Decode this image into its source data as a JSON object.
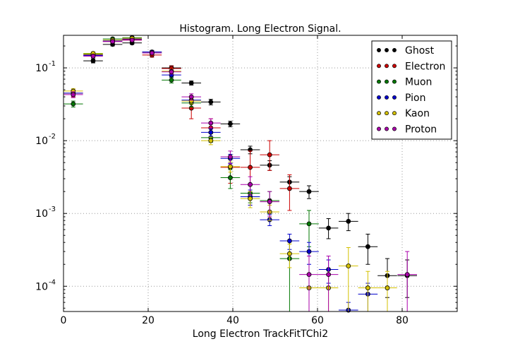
{
  "chart_data": {
    "type": "scatter",
    "title": "Histogram. Long Electron Signal.",
    "xlabel": "Long Electron TrackFitTChi2",
    "ylabel": "",
    "xlim": [
      0,
      93
    ],
    "ylim": [
      4.5e-05,
      0.28
    ],
    "yscale": "log",
    "grid": true,
    "legend_position": "top-right",
    "x_ticks": [
      0,
      20,
      40,
      60,
      80
    ],
    "x_tick_labels": [
      "0",
      "20",
      "40",
      "60",
      "80"
    ],
    "y_ticks": [
      0.0001,
      0.001,
      0.01,
      0.1
    ],
    "y_tick_labels": [
      "10",
      "10",
      "10",
      "10"
    ],
    "y_tick_exponents": [
      "-4",
      "-3",
      "-2",
      "-1"
    ],
    "x_bin_halfwidth": 2.3,
    "series": [
      {
        "name": "Ghost",
        "color": "#000000",
        "points": [
          {
            "x": 7.0,
            "y": 0.125,
            "lo": 0.117,
            "hi": 0.133
          },
          {
            "x": 11.6,
            "y": 0.21,
            "lo": 0.2,
            "hi": 0.22
          },
          {
            "x": 16.2,
            "y": 0.22,
            "lo": 0.21,
            "hi": 0.23
          },
          {
            "x": 20.9,
            "y": 0.165,
            "lo": 0.156,
            "hi": 0.174
          },
          {
            "x": 25.5,
            "y": 0.1,
            "lo": 0.093,
            "hi": 0.107
          },
          {
            "x": 30.2,
            "y": 0.062,
            "lo": 0.058,
            "hi": 0.066
          },
          {
            "x": 34.8,
            "y": 0.034,
            "lo": 0.031,
            "hi": 0.037
          },
          {
            "x": 39.4,
            "y": 0.017,
            "lo": 0.0155,
            "hi": 0.0185
          },
          {
            "x": 44.1,
            "y": 0.0075,
            "lo": 0.0066,
            "hi": 0.0084
          },
          {
            "x": 48.7,
            "y": 0.0046,
            "lo": 0.0039,
            "hi": 0.0053
          },
          {
            "x": 53.4,
            "y": 0.0027,
            "lo": 0.0022,
            "hi": 0.0032
          },
          {
            "x": 58.0,
            "y": 0.002,
            "lo": 0.0016,
            "hi": 0.0024
          },
          {
            "x": 62.6,
            "y": 0.00063,
            "lo": 0.00045,
            "hi": 0.00085
          },
          {
            "x": 67.3,
            "y": 0.00078,
            "lo": 0.00058,
            "hi": 0.001
          },
          {
            "x": 71.9,
            "y": 0.00035,
            "lo": 0.0002,
            "hi": 0.00052
          },
          {
            "x": 76.5,
            "y": 0.00014,
            "lo": 7e-05,
            "hi": 0.00024
          },
          {
            "x": 81.2,
            "y": 0.00014,
            "lo": 7e-05,
            "hi": 0.00023
          }
        ]
      },
      {
        "name": "Electron",
        "color": "#cc0000",
        "points": [
          {
            "x": 2.3,
            "y": 0.045,
            "lo": 0.04,
            "hi": 0.05
          },
          {
            "x": 7.0,
            "y": 0.15,
            "lo": 0.14,
            "hi": 0.16
          },
          {
            "x": 11.6,
            "y": 0.23,
            "lo": 0.22,
            "hi": 0.24
          },
          {
            "x": 16.2,
            "y": 0.245,
            "lo": 0.235,
            "hi": 0.255
          },
          {
            "x": 20.9,
            "y": 0.15,
            "lo": 0.14,
            "hi": 0.16
          },
          {
            "x": 25.5,
            "y": 0.098,
            "lo": 0.09,
            "hi": 0.106
          },
          {
            "x": 30.2,
            "y": 0.028,
            "lo": 0.02,
            "hi": 0.036
          },
          {
            "x": 34.8,
            "y": 0.015,
            "lo": 0.01,
            "hi": 0.02
          },
          {
            "x": 39.4,
            "y": 0.0043,
            "lo": 0.0026,
            "hi": 0.006
          },
          {
            "x": 44.1,
            "y": 0.0043,
            "lo": 0.0013,
            "hi": 0.0072
          },
          {
            "x": 48.7,
            "y": 0.0064,
            "lo": 0.0039,
            "hi": 0.01
          },
          {
            "x": 53.4,
            "y": 0.0022,
            "lo": 0.0011,
            "hi": 0.0034
          }
        ]
      },
      {
        "name": "Muon",
        "color": "#007700",
        "points": [
          {
            "x": 2.3,
            "y": 0.032,
            "lo": 0.029,
            "hi": 0.035
          },
          {
            "x": 7.0,
            "y": 0.155,
            "lo": 0.145,
            "hi": 0.165
          },
          {
            "x": 11.6,
            "y": 0.25,
            "lo": 0.24,
            "hi": 0.26
          },
          {
            "x": 16.2,
            "y": 0.26,
            "lo": 0.25,
            "hi": 0.27
          },
          {
            "x": 20.9,
            "y": 0.16,
            "lo": 0.152,
            "hi": 0.168
          },
          {
            "x": 25.5,
            "y": 0.068,
            "lo": 0.062,
            "hi": 0.074
          },
          {
            "x": 30.2,
            "y": 0.033,
            "lo": 0.029,
            "hi": 0.037
          },
          {
            "x": 34.8,
            "y": 0.011,
            "lo": 0.0095,
            "hi": 0.0125
          },
          {
            "x": 39.4,
            "y": 0.0031,
            "lo": 0.0022,
            "hi": 0.004
          },
          {
            "x": 44.1,
            "y": 0.0019,
            "lo": 0.0014,
            "hi": 0.0024
          },
          {
            "x": 48.7,
            "y": 0.0015,
            "lo": 0.001,
            "hi": 0.002
          },
          {
            "x": 53.4,
            "y": 0.00024,
            "lo": 4.5e-05,
            "hi": 0.00042
          },
          {
            "x": 58.0,
            "y": 0.00072,
            "lo": 0.00035,
            "hi": 0.0011
          }
        ]
      },
      {
        "name": "Pion",
        "color": "#0000cc",
        "points": [
          {
            "x": 2.3,
            "y": 0.045,
            "lo": 0.041,
            "hi": 0.049
          },
          {
            "x": 7.0,
            "y": 0.148,
            "lo": 0.14,
            "hi": 0.156
          },
          {
            "x": 11.6,
            "y": 0.235,
            "lo": 0.225,
            "hi": 0.245
          },
          {
            "x": 16.2,
            "y": 0.25,
            "lo": 0.24,
            "hi": 0.26
          },
          {
            "x": 20.9,
            "y": 0.165,
            "lo": 0.157,
            "hi": 0.173
          },
          {
            "x": 25.5,
            "y": 0.08,
            "lo": 0.075,
            "hi": 0.085
          },
          {
            "x": 30.2,
            "y": 0.036,
            "lo": 0.033,
            "hi": 0.039
          },
          {
            "x": 34.8,
            "y": 0.013,
            "lo": 0.0115,
            "hi": 0.0145
          },
          {
            "x": 39.4,
            "y": 0.0057,
            "lo": 0.0049,
            "hi": 0.0065
          },
          {
            "x": 44.1,
            "y": 0.0017,
            "lo": 0.0013,
            "hi": 0.0021
          },
          {
            "x": 48.7,
            "y": 0.00082,
            "lo": 0.00068,
            "hi": 0.00096
          },
          {
            "x": 53.4,
            "y": 0.00042,
            "lo": 0.00032,
            "hi": 0.00052
          },
          {
            "x": 58.0,
            "y": 0.0003,
            "lo": 0.0002,
            "hi": 0.0004
          },
          {
            "x": 62.6,
            "y": 0.00017,
            "lo": 0.00011,
            "hi": 0.00023
          },
          {
            "x": 67.3,
            "y": 4.7e-05,
            "lo": 4.5e-05,
            "hi": 6e-05
          },
          {
            "x": 71.9,
            "y": 7.8e-05,
            "lo": 4.5e-05,
            "hi": 0.00011
          }
        ]
      },
      {
        "name": "Kaon",
        "color": "#d4c000",
        "points": [
          {
            "x": 2.3,
            "y": 0.048,
            "lo": 0.044,
            "hi": 0.052
          },
          {
            "x": 7.0,
            "y": 0.158,
            "lo": 0.15,
            "hi": 0.166
          },
          {
            "x": 11.6,
            "y": 0.24,
            "lo": 0.23,
            "hi": 0.25
          },
          {
            "x": 16.2,
            "y": 0.255,
            "lo": 0.245,
            "hi": 0.265
          },
          {
            "x": 20.9,
            "y": 0.16,
            "lo": 0.152,
            "hi": 0.168
          },
          {
            "x": 25.5,
            "y": 0.09,
            "lo": 0.084,
            "hi": 0.096
          },
          {
            "x": 30.2,
            "y": 0.035,
            "lo": 0.032,
            "hi": 0.038
          },
          {
            "x": 34.8,
            "y": 0.01,
            "lo": 0.0088,
            "hi": 0.0112
          },
          {
            "x": 39.4,
            "y": 0.0044,
            "lo": 0.0037,
            "hi": 0.0051
          },
          {
            "x": 44.1,
            "y": 0.0016,
            "lo": 0.0012,
            "hi": 0.002
          },
          {
            "x": 48.7,
            "y": 0.00105,
            "lo": 0.0008,
            "hi": 0.0013
          },
          {
            "x": 53.4,
            "y": 0.00028,
            "lo": 0.00018,
            "hi": 0.00038
          },
          {
            "x": 58.0,
            "y": 9.5e-05,
            "lo": 4.5e-05,
            "hi": 0.00015
          },
          {
            "x": 62.6,
            "y": 9.5e-05,
            "lo": 4.5e-05,
            "hi": 0.00015
          },
          {
            "x": 67.3,
            "y": 0.00019,
            "lo": 4.5e-05,
            "hi": 0.00034
          },
          {
            "x": 71.9,
            "y": 9.5e-05,
            "lo": 4.5e-05,
            "hi": 0.00016
          },
          {
            "x": 76.5,
            "y": 9.5e-05,
            "lo": 4.5e-05,
            "hi": 0.00016
          }
        ]
      },
      {
        "name": "Proton",
        "color": "#aa00aa",
        "points": [
          {
            "x": 2.3,
            "y": 0.043,
            "lo": 0.039,
            "hi": 0.047
          },
          {
            "x": 7.0,
            "y": 0.145,
            "lo": 0.137,
            "hi": 0.153
          },
          {
            "x": 11.6,
            "y": 0.23,
            "lo": 0.22,
            "hi": 0.24
          },
          {
            "x": 16.2,
            "y": 0.24,
            "lo": 0.23,
            "hi": 0.25
          },
          {
            "x": 20.9,
            "y": 0.16,
            "lo": 0.152,
            "hi": 0.168
          },
          {
            "x": 25.5,
            "y": 0.088,
            "lo": 0.082,
            "hi": 0.094
          },
          {
            "x": 30.2,
            "y": 0.04,
            "lo": 0.036,
            "hi": 0.044
          },
          {
            "x": 34.8,
            "y": 0.0175,
            "lo": 0.015,
            "hi": 0.02
          },
          {
            "x": 39.4,
            "y": 0.006,
            "lo": 0.0048,
            "hi": 0.0072
          },
          {
            "x": 44.1,
            "y": 0.0025,
            "lo": 0.0018,
            "hi": 0.0032
          },
          {
            "x": 48.7,
            "y": 0.00145,
            "lo": 0.0009,
            "hi": 0.002
          },
          {
            "x": 58.0,
            "y": 0.000145,
            "lo": 4.5e-05,
            "hi": 0.00026
          },
          {
            "x": 62.6,
            "y": 0.000145,
            "lo": 4.5e-05,
            "hi": 0.00026
          },
          {
            "x": 81.2,
            "y": 0.000145,
            "lo": 4.5e-05,
            "hi": 0.0003
          }
        ]
      }
    ]
  }
}
